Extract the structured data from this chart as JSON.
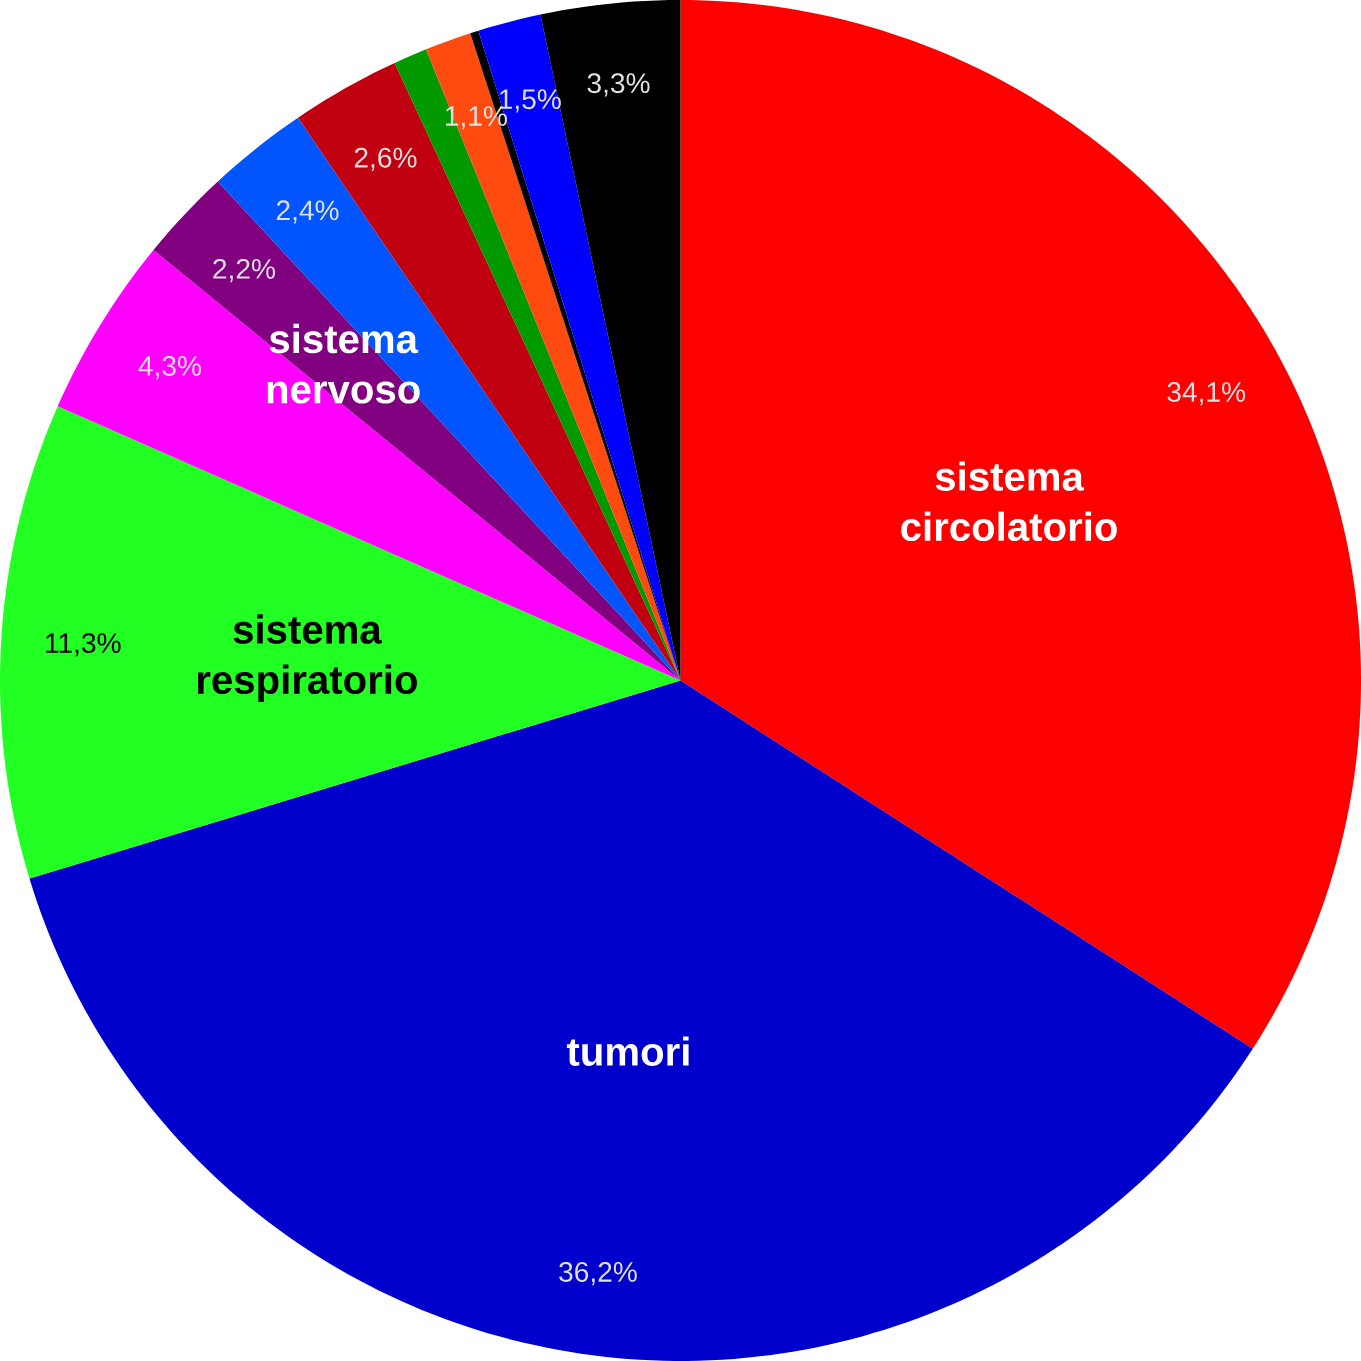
{
  "chart_data": {
    "type": "pie",
    "categories": [
      "sistema circolatorio",
      "tumori",
      "sistema respiratorio",
      null,
      "sistema nervoso",
      null,
      null,
      null,
      null,
      null,
      null,
      null
    ],
    "values": [
      34.1,
      36.2,
      11.3,
      4.3,
      2.2,
      2.4,
      2.6,
      0.8,
      1.1,
      0.2,
      1.5,
      3.3
    ],
    "value_labels": [
      "34,1%",
      "36,2%",
      "11,3%",
      "4,3%",
      "2,2%",
      "2,4%",
      "2,6%",
      null,
      "1,1%",
      null,
      "1,5%",
      "3,3%"
    ],
    "colors": [
      "#ff0000",
      "#0000cc",
      "#22ff22",
      "#ff00ff",
      "#800080",
      "#0055ff",
      "#c00010",
      "#009900",
      "#ff4a10",
      "#000000",
      "#0000ff",
      "#000000"
    ],
    "legend": false
  }
}
